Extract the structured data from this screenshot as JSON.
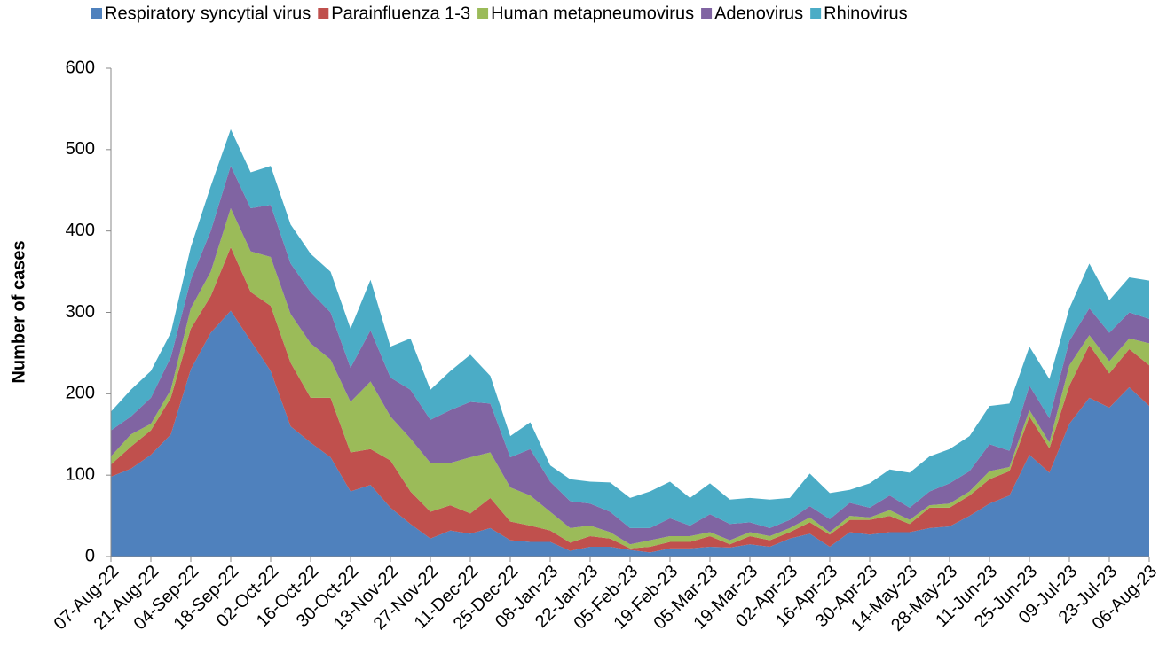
{
  "chart_data": {
    "type": "stacked-area",
    "y_label": "Number of cases",
    "categories": [
      "07-Aug-22",
      null,
      "21-Aug-22",
      null,
      "04-Sep-22",
      null,
      "18-Sep-22",
      null,
      "02-Oct-22",
      null,
      "16-Oct-22",
      null,
      "30-Oct-22",
      null,
      "13-Nov-22",
      null,
      "27-Nov-22",
      null,
      "11-Dec-22",
      null,
      "25-Dec-22",
      null,
      "08-Jan-23",
      null,
      "22-Jan-23",
      null,
      "05-Feb-23",
      null,
      "19-Feb-23",
      null,
      "05-Mar-23",
      null,
      "19-Mar-23",
      null,
      "02-Apr-23",
      null,
      "16-Apr-23",
      null,
      "30-Apr-23",
      null,
      "14-May-23",
      null,
      "28-May-23",
      null,
      "11-Jun-23",
      null,
      "25-Jun-23",
      null,
      "09-Jul-23",
      null,
      "23-Jul-23",
      null,
      "06-Aug-23"
    ],
    "series": [
      {
        "name": "Respiratory syncytial virus",
        "color": "#4f81bd",
        "values": [
          98,
          108,
          125,
          150,
          230,
          275,
          302,
          265,
          228,
          160,
          140,
          122,
          80,
          88,
          60,
          40,
          22,
          32,
          28,
          35,
          20,
          18,
          18,
          7,
          12,
          12,
          8,
          5,
          10,
          10,
          12,
          11,
          15,
          12,
          22,
          28,
          12,
          30,
          27,
          30,
          30,
          35,
          37,
          50,
          65,
          75,
          125,
          103,
          163,
          195,
          183,
          208,
          185
        ]
      },
      {
        "name": "Parainfluenza 1-3",
        "color": "#c0504d",
        "values": [
          15,
          27,
          30,
          45,
          50,
          45,
          78,
          60,
          80,
          78,
          55,
          73,
          48,
          44,
          58,
          40,
          33,
          31,
          25,
          37,
          23,
          20,
          14,
          10,
          13,
          10,
          2,
          7,
          8,
          8,
          13,
          4,
          10,
          8,
          8,
          14,
          15,
          15,
          18,
          20,
          10,
          25,
          23,
          25,
          30,
          30,
          47,
          30,
          47,
          65,
          42,
          47,
          50
        ]
      },
      {
        "name": "Human metapneumovirus",
        "color": "#9bbb59",
        "values": [
          10,
          15,
          8,
          10,
          25,
          30,
          48,
          50,
          60,
          60,
          67,
          47,
          62,
          83,
          54,
          65,
          60,
          52,
          69,
          56,
          42,
          37,
          23,
          18,
          13,
          8,
          5,
          8,
          7,
          7,
          5,
          5,
          5,
          5,
          5,
          6,
          3,
          5,
          3,
          7,
          5,
          3,
          5,
          5,
          10,
          5,
          8,
          7,
          25,
          12,
          15,
          13,
          27
        ]
      },
      {
        "name": "Adenovirus",
        "color": "#8064a2",
        "values": [
          32,
          22,
          32,
          40,
          35,
          50,
          52,
          53,
          64,
          62,
          63,
          58,
          42,
          63,
          48,
          60,
          53,
          65,
          68,
          60,
          37,
          57,
          37,
          33,
          27,
          25,
          20,
          15,
          22,
          13,
          22,
          20,
          12,
          10,
          10,
          14,
          16,
          16,
          12,
          18,
          15,
          17,
          25,
          25,
          33,
          20,
          30,
          30,
          30,
          33,
          35,
          32,
          30
        ]
      },
      {
        "name": "Rhinovirus",
        "color": "#4bacc6",
        "values": [
          23,
          33,
          33,
          30,
          40,
          55,
          45,
          44,
          48,
          48,
          47,
          50,
          48,
          62,
          38,
          63,
          37,
          48,
          58,
          34,
          26,
          33,
          20,
          27,
          27,
          36,
          37,
          45,
          45,
          34,
          38,
          30,
          30,
          35,
          27,
          40,
          32,
          16,
          30,
          32,
          43,
          43,
          42,
          43,
          47,
          58,
          48,
          48,
          40,
          55,
          40,
          43,
          47
        ]
      }
    ],
    "ylim": [
      0,
      600
    ],
    "yticks": [
      0,
      100,
      200,
      300,
      400,
      500,
      600
    ],
    "grid": false,
    "legend": "top"
  }
}
